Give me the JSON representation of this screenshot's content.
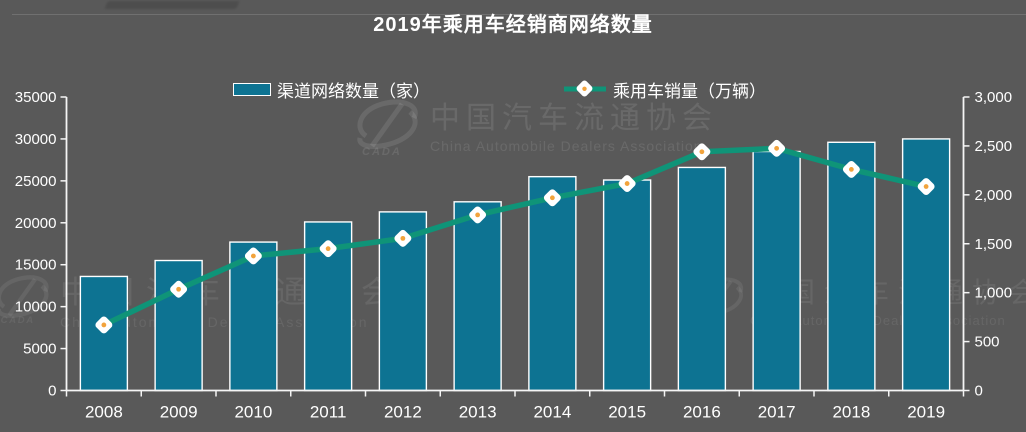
{
  "title": "2019年乘用车经销商网络数量",
  "legend": {
    "bar_label": "渠道网络数量（家）",
    "line_label": "乘用车销量（万辆）"
  },
  "watermark": {
    "cn": "中国汽车流通协会",
    "en": "China Automobile Dealers Association",
    "logo": "CADA"
  },
  "colors": {
    "background": "#595959",
    "bar": "#0d7392",
    "bar_border": "#ffffff",
    "line": "#0f9478",
    "marker_fill": "#ffffff",
    "marker_dot": "#f2a33c",
    "axis": "#f5f5f5",
    "text": "#ffffff"
  },
  "chart_data": {
    "type": "combo",
    "title": "2019年乘用车经销商网络数量",
    "categories": [
      "2008",
      "2009",
      "2010",
      "2011",
      "2012",
      "2013",
      "2014",
      "2015",
      "2016",
      "2017",
      "2018",
      "2019"
    ],
    "series": [
      {
        "name": "渠道网络数量（家）",
        "type": "bar",
        "axis": "left",
        "values": [
          13600,
          15500,
          17700,
          20100,
          21300,
          22500,
          25500,
          25100,
          26600,
          28500,
          29600,
          30000
        ]
      },
      {
        "name": "乘用车销量（万辆）",
        "type": "line",
        "axis": "right",
        "values": [
          670,
          1035,
          1375,
          1450,
          1555,
          1795,
          1970,
          2115,
          2440,
          2475,
          2260,
          2085
        ]
      }
    ],
    "left_axis": {
      "min": 0,
      "max": 35000,
      "ticks": [
        {
          "value": 0,
          "label": "0"
        },
        {
          "value": 5000,
          "label": "5000"
        },
        {
          "value": 10000,
          "label": "10000"
        },
        {
          "value": 15000,
          "label": "15000"
        },
        {
          "value": 20000,
          "label": "20000"
        },
        {
          "value": 25000,
          "label": "25000"
        },
        {
          "value": 30000,
          "label": "30000"
        },
        {
          "value": 35000,
          "label": "35000"
        }
      ]
    },
    "right_axis": {
      "min": 0,
      "max": 3000,
      "ticks": [
        {
          "value": 0,
          "label": "0"
        },
        {
          "value": 500,
          "label": "500"
        },
        {
          "value": 1000,
          "label": "1,000"
        },
        {
          "value": 1500,
          "label": "1,500"
        },
        {
          "value": 2000,
          "label": "2,000"
        },
        {
          "value": 2500,
          "label": "2,500"
        },
        {
          "value": 3000,
          "label": "3,000"
        }
      ]
    },
    "legend_position": "top",
    "grid": false
  }
}
